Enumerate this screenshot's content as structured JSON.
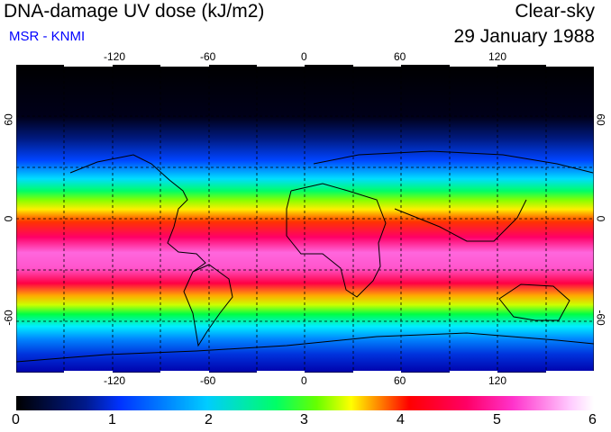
{
  "header": {
    "title": "DNA-damage UV dose (kJ/m2)",
    "subtitle": "MSR - KNMI",
    "condition": "Clear-sky",
    "date": "29 January 1988"
  },
  "map": {
    "lon_ticks": [
      "-120",
      "-60",
      "0",
      "60",
      "120"
    ],
    "lat_ticks": [
      "60",
      "0",
      "-60"
    ],
    "colors": {
      "subtitle": "#0000ff",
      "frame": "#000000"
    }
  },
  "colorbar": {
    "labels": [
      "0",
      "1",
      "2",
      "3",
      "4",
      "5",
      "6"
    ]
  }
}
